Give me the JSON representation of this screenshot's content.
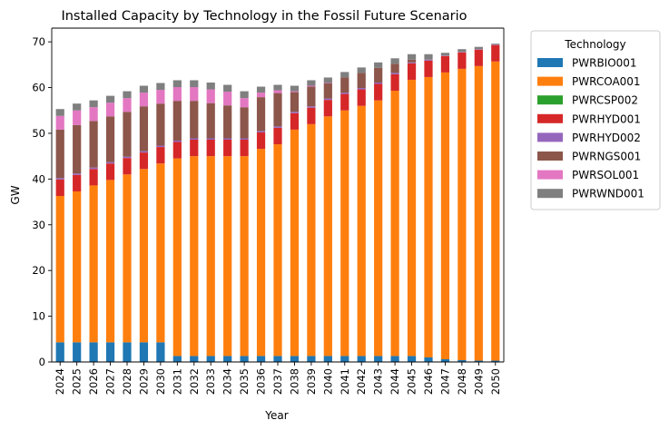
{
  "chart_data": {
    "type": "bar",
    "stacked": true,
    "title": "Installed Capacity by Technology in the Fossil Future Scenario",
    "xlabel": "Year",
    "ylabel": "GW",
    "ylim": [
      0,
      73
    ],
    "yticks": [
      0,
      10,
      20,
      30,
      40,
      50,
      60,
      70
    ],
    "grid": false,
    "legend_title": "Technology",
    "legend_position": "outside-right",
    "categories": [
      "2024",
      "2025",
      "2026",
      "2027",
      "2028",
      "2029",
      "2030",
      "2031",
      "2032",
      "2033",
      "2034",
      "2035",
      "2036",
      "2037",
      "2038",
      "2039",
      "2040",
      "2041",
      "2042",
      "2043",
      "2044",
      "2045",
      "2046",
      "2047",
      "2048",
      "2049",
      "2050"
    ],
    "series": [
      {
        "name": "PWRBIO001",
        "color": "#1f77b4",
        "values": [
          4.3,
          4.3,
          4.3,
          4.3,
          4.3,
          4.3,
          4.3,
          1.3,
          1.3,
          1.3,
          1.3,
          1.3,
          1.3,
          1.3,
          1.3,
          1.3,
          1.3,
          1.3,
          1.3,
          1.3,
          1.3,
          1.3,
          1.0,
          0.6,
          0.4,
          0.3,
          0.3
        ]
      },
      {
        "name": "PWRCOA001",
        "color": "#ff7f0e",
        "values": [
          32.0,
          33.0,
          34.3,
          35.5,
          36.7,
          37.9,
          39.1,
          43.2,
          43.7,
          43.7,
          43.7,
          43.7,
          45.3,
          46.3,
          49.5,
          50.7,
          52.4,
          53.7,
          54.7,
          55.9,
          58.0,
          60.4,
          61.3,
          62.7,
          63.7,
          64.4,
          65.4
        ]
      },
      {
        "name": "PWRCSP002",
        "color": "#2ca02c",
        "values": [
          0,
          0,
          0,
          0,
          0,
          0,
          0,
          0,
          0,
          0,
          0,
          0,
          0,
          0,
          0,
          0,
          0,
          0,
          0,
          0,
          0,
          0,
          0,
          0,
          0,
          0,
          0
        ]
      },
      {
        "name": "PWRHYD001",
        "color": "#d62728",
        "values": [
          3.6,
          3.6,
          3.6,
          3.6,
          3.6,
          3.6,
          3.6,
          3.6,
          3.6,
          3.6,
          3.6,
          3.6,
          3.6,
          3.6,
          3.6,
          3.6,
          3.6,
          3.6,
          3.6,
          3.6,
          3.6,
          3.6,
          3.6,
          3.6,
          3.6,
          3.6,
          3.6
        ]
      },
      {
        "name": "PWRHYD002",
        "color": "#9467bd",
        "values": [
          0.3,
          0.3,
          0.3,
          0.3,
          0.3,
          0.3,
          0.3,
          0.3,
          0.3,
          0.3,
          0.3,
          0.3,
          0.3,
          0.3,
          0.3,
          0.3,
          0.3,
          0.3,
          0.3,
          0.3,
          0.3,
          0.2,
          0.2,
          0.1,
          0.1,
          0.1,
          0.1
        ]
      },
      {
        "name": "PWRNGS001",
        "color": "#8c564b",
        "values": [
          10.6,
          10.6,
          10.2,
          10.0,
          9.8,
          9.8,
          9.2,
          8.7,
          8.2,
          7.7,
          7.2,
          6.8,
          7.4,
          7.3,
          4.3,
          4.3,
          3.3,
          3.3,
          3.3,
          3.2,
          2.0,
          0.6,
          0,
          0,
          0,
          0,
          0
        ]
      },
      {
        "name": "PWRSOL001",
        "color": "#e377c2",
        "values": [
          3.0,
          3.2,
          3.0,
          3.0,
          3.0,
          3.0,
          3.0,
          3.0,
          3.0,
          3.0,
          3.0,
          2.0,
          1.0,
          0.6,
          0.2,
          0.2,
          0.1,
          0,
          0,
          0,
          0,
          0,
          0,
          0,
          0,
          0,
          0
        ]
      },
      {
        "name": "PWRWND001",
        "color": "#7f7f7f",
        "values": [
          1.5,
          1.5,
          1.5,
          1.5,
          1.5,
          1.5,
          1.5,
          1.5,
          1.5,
          1.5,
          1.5,
          1.5,
          1.3,
          1.2,
          1.2,
          1.2,
          1.2,
          1.2,
          1.2,
          1.2,
          1.2,
          1.2,
          1.2,
          0.6,
          0.6,
          0.5,
          0.2
        ]
      }
    ]
  }
}
